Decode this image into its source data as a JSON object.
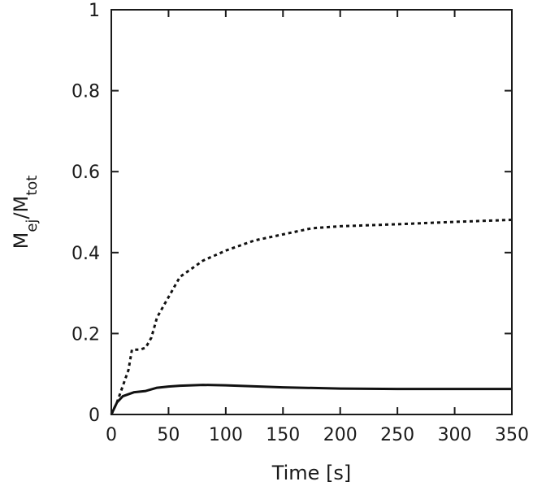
{
  "chart_data": {
    "type": "line",
    "title": "",
    "xlabel": "Time [s]",
    "ylabel": {
      "main": "M",
      "sub1": "ej",
      "sep": "/M",
      "sub2": "tot"
    },
    "xlim": [
      0,
      350
    ],
    "ylim": [
      0,
      1
    ],
    "xticks": [
      0,
      50,
      100,
      150,
      200,
      250,
      300,
      350
    ],
    "xtick_labels": [
      "0",
      "50",
      "100",
      "150",
      "200",
      "250",
      "300",
      "350"
    ],
    "yticks": [
      0,
      0.2,
      0.4,
      0.6,
      0.8,
      1
    ],
    "ytick_labels": [
      "0",
      "0.2",
      "0.4",
      "0.6",
      "0.8",
      "1"
    ],
    "grid": false,
    "legend": false,
    "series": [
      {
        "style": "dotted",
        "color": "#111111",
        "x": [
          0,
          5,
          10,
          15,
          18,
          25,
          30,
          35,
          40,
          50,
          60,
          80,
          100,
          125,
          150,
          175,
          200,
          250,
          300,
          350
        ],
        "y": [
          0,
          0.03,
          0.07,
          0.11,
          0.16,
          0.16,
          0.165,
          0.19,
          0.24,
          0.29,
          0.34,
          0.38,
          0.405,
          0.43,
          0.445,
          0.46,
          0.465,
          0.47,
          0.476,
          0.481
        ]
      },
      {
        "style": "solid",
        "color": "#111111",
        "x": [
          0,
          5,
          10,
          15,
          20,
          30,
          40,
          50,
          60,
          80,
          100,
          150,
          200,
          250,
          300,
          350
        ],
        "y": [
          0,
          0.03,
          0.045,
          0.05,
          0.055,
          0.058,
          0.066,
          0.069,
          0.071,
          0.073,
          0.072,
          0.067,
          0.064,
          0.063,
          0.063,
          0.063
        ]
      }
    ]
  }
}
